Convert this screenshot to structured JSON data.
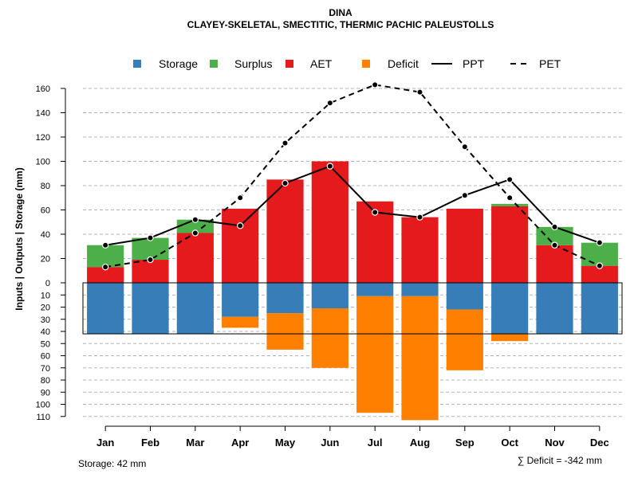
{
  "chart_data": {
    "type": "bar",
    "title": "DINA",
    "subtitle": "CLAYEY-SKELETAL, SMECTITIC, THERMIC PACHIC PALEUSTOLLS",
    "ylabel": "Inputs | Outputs | Storage    (mm)",
    "categories": [
      "Jan",
      "Feb",
      "Mar",
      "Apr",
      "May",
      "Jun",
      "Jul",
      "Aug",
      "Sep",
      "Oct",
      "Nov",
      "Dec"
    ],
    "upper_axis": {
      "ylim": [
        0,
        170
      ],
      "ticks": [
        0,
        20,
        40,
        60,
        80,
        100,
        120,
        140,
        160
      ]
    },
    "lower_axis": {
      "ylim": [
        0,
        115
      ],
      "ticks": [
        0,
        10,
        20,
        30,
        40,
        50,
        60,
        70,
        80,
        90,
        100,
        110
      ]
    },
    "storage_capacity_mm": 42,
    "series": [
      {
        "name": "AET",
        "kind": "bar-up",
        "color": "#E41A1C",
        "values": [
          13,
          19,
          41,
          61,
          85,
          100,
          67,
          54,
          61,
          63,
          31,
          14
        ]
      },
      {
        "name": "Surplus",
        "kind": "bar-up-stacked",
        "color": "#4DAF4A",
        "values": [
          18,
          18,
          11,
          0,
          0,
          0,
          0,
          0,
          0,
          2,
          15,
          19
        ]
      },
      {
        "name": "Storage",
        "kind": "bar-down",
        "color": "#377EB8",
        "values": [
          42,
          42,
          42,
          28,
          25,
          21,
          11,
          11,
          22,
          42,
          42,
          42
        ]
      },
      {
        "name": "Deficit",
        "kind": "bar-down-stacked",
        "color": "#FF7F00",
        "values": [
          0,
          0,
          0,
          9,
          30,
          49,
          96,
          102,
          50,
          6,
          0,
          0
        ]
      },
      {
        "name": "PPT",
        "kind": "line-solid",
        "color": "#000000",
        "values": [
          31,
          37,
          52,
          47,
          82,
          96,
          58,
          54,
          72,
          85,
          46,
          33
        ]
      },
      {
        "name": "PET",
        "kind": "line-dashed",
        "color": "#000000",
        "values": [
          13,
          19,
          41,
          70,
          115,
          148,
          163,
          157,
          112,
          70,
          31,
          14
        ]
      }
    ],
    "legend": [
      "Storage",
      "Surplus",
      "AET",
      "Deficit",
      "PPT",
      "PET"
    ],
    "legend_position": "top",
    "grid": true,
    "storage_note": "Storage: 42 mm",
    "deficit_note": "∑ Deficit = -342 mm"
  }
}
